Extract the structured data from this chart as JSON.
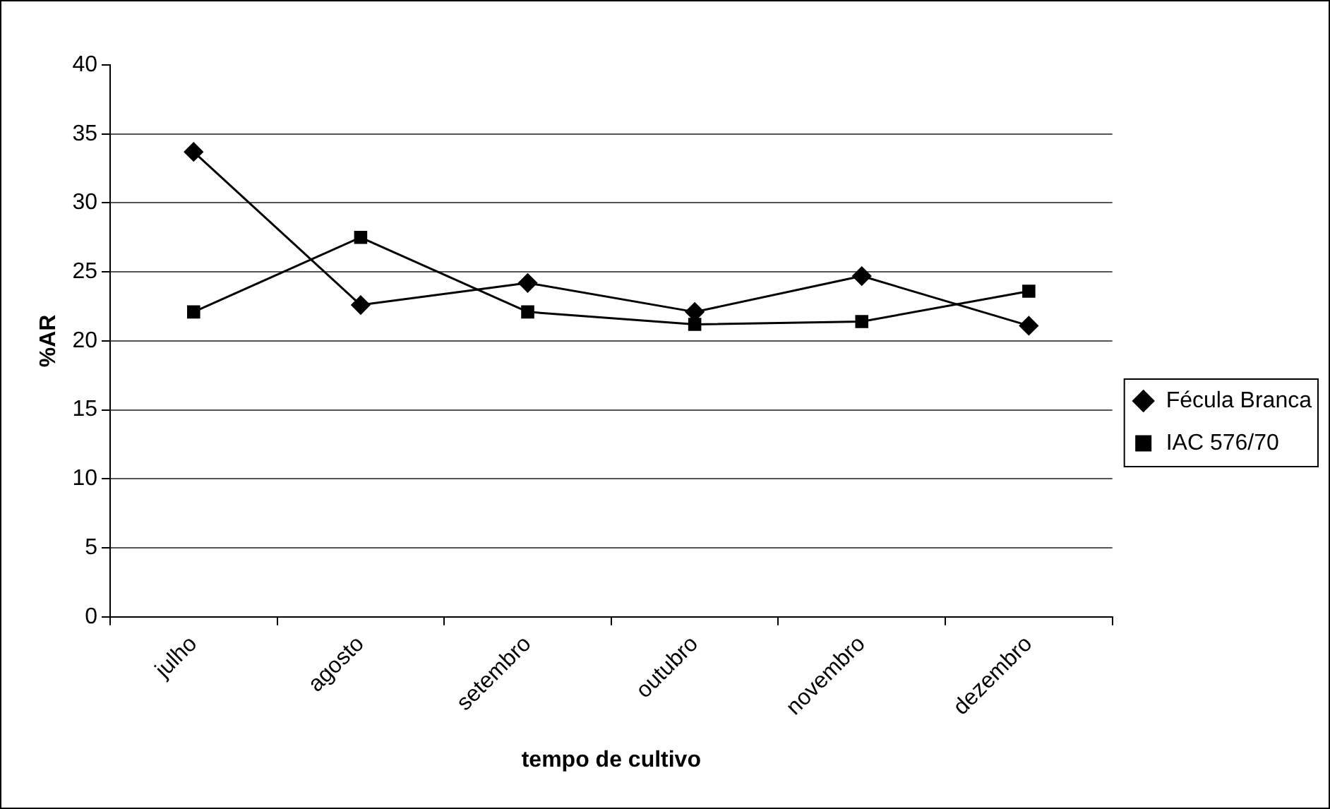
{
  "chart_data": {
    "type": "line",
    "xlabel": "tempo de cultivo",
    "ylabel": "%AR",
    "categories": [
      "julho",
      "agosto",
      "setembro",
      "outubro",
      "novembro",
      "dezembro"
    ],
    "series": [
      {
        "name": "Fécula Branca",
        "color": "#000000",
        "marker": "diamond",
        "values": [
          33.7,
          22.6,
          24.2,
          22.1,
          24.7,
          21.1
        ]
      },
      {
        "name": "IAC 576/70",
        "color": "#000000",
        "marker": "square",
        "values": [
          22.1,
          27.5,
          22.1,
          21.2,
          21.4,
          23.6
        ]
      }
    ],
    "ylim": [
      0,
      40
    ],
    "yticks": [
      0,
      5,
      10,
      15,
      20,
      25,
      30,
      35,
      40
    ],
    "grid": "y",
    "legend": "right",
    "line_style": "solid"
  }
}
